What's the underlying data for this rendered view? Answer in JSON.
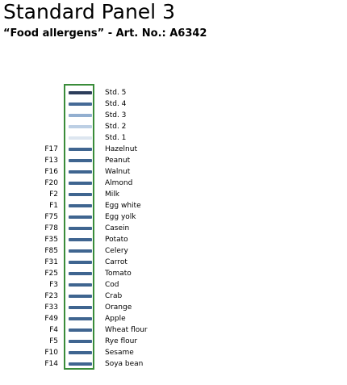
{
  "header": {
    "title": "Standard Panel 3",
    "subtitle": "“Food allergens” - Art. No.: A6342"
  },
  "colors": {
    "frame": "#3a8c3a",
    "band_default": "#3f6590"
  },
  "rows": [
    {
      "code": "",
      "label": "Std. 5",
      "color": "#2c3d5b"
    },
    {
      "code": "",
      "label": "Std. 4",
      "color": "#456a96"
    },
    {
      "code": "",
      "label": "Std. 3",
      "color": "#93afd0"
    },
    {
      "code": "",
      "label": "Std. 2",
      "color": "#bccfe4"
    },
    {
      "code": "",
      "label": "Std. 1",
      "color": "#dde6f0"
    },
    {
      "code": "F17",
      "label": "Hazelnut",
      "color": "#3f6590"
    },
    {
      "code": "F13",
      "label": "Peanut",
      "color": "#3f6590"
    },
    {
      "code": "F16",
      "label": "Walnut",
      "color": "#3f6590"
    },
    {
      "code": "F20",
      "label": "Almond",
      "color": "#3f6590"
    },
    {
      "code": "F2",
      "label": "Milk",
      "color": "#3f6590"
    },
    {
      "code": "F1",
      "label": "Egg white",
      "color": "#3f6590"
    },
    {
      "code": "F75",
      "label": "Egg yolk",
      "color": "#3f6590"
    },
    {
      "code": "F78",
      "label": "Casein",
      "color": "#3f6590"
    },
    {
      "code": "F35",
      "label": "Potato",
      "color": "#3f6590"
    },
    {
      "code": "F85",
      "label": "Celery",
      "color": "#3f6590"
    },
    {
      "code": "F31",
      "label": "Carrot",
      "color": "#3f6590"
    },
    {
      "code": "F25",
      "label": "Tomato",
      "color": "#3f6590"
    },
    {
      "code": "F3",
      "label": "Cod",
      "color": "#3f6590"
    },
    {
      "code": "F23",
      "label": "Crab",
      "color": "#3f6590"
    },
    {
      "code": "F33",
      "label": "Orange",
      "color": "#3f6590"
    },
    {
      "code": "F49",
      "label": "Apple",
      "color": "#3f6590"
    },
    {
      "code": "F4",
      "label": "Wheat flour",
      "color": "#3f6590"
    },
    {
      "code": "F5",
      "label": "Rye flour",
      "color": "#3f6590"
    },
    {
      "code": "F10",
      "label": "Sesame",
      "color": "#3f6590"
    },
    {
      "code": "F14",
      "label": "Soya bean",
      "color": "#3f6590"
    }
  ]
}
